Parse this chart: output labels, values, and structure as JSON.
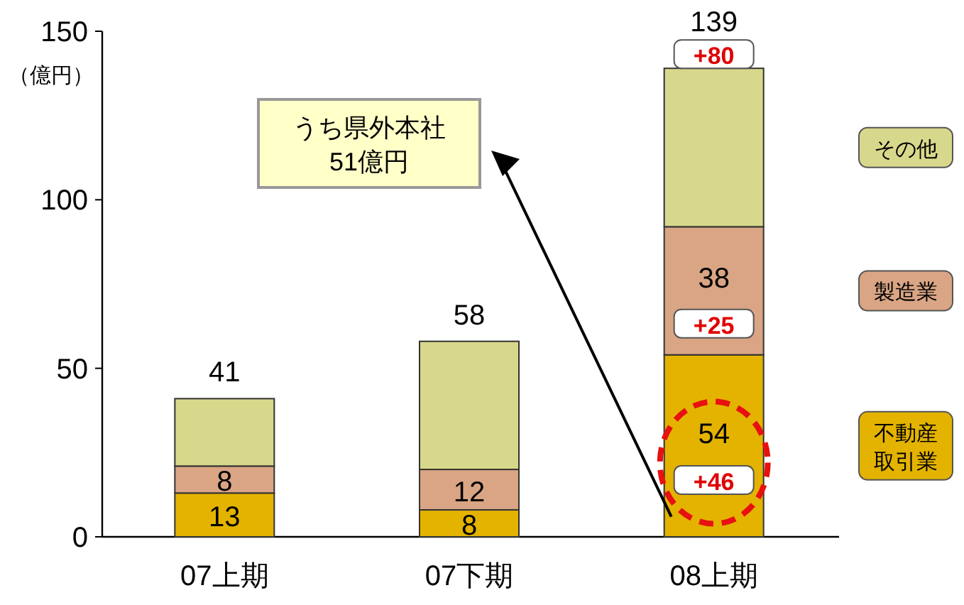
{
  "chart_data": {
    "type": "bar",
    "stacked": true,
    "ylabel": "（億円）",
    "categories": [
      "07上期",
      "07下期",
      "08上期"
    ],
    "series": [
      {
        "name": "不動産取引業",
        "color": "#e3b300",
        "values": [
          13,
          8,
          54
        ],
        "value_labels": [
          "13",
          "8",
          "54"
        ]
      },
      {
        "name": "製造業",
        "color": "#d9a584",
        "values": [
          8,
          12,
          38
        ],
        "value_labels": [
          "8",
          "12",
          "38"
        ]
      },
      {
        "name": "その他",
        "color": "#d8d88c",
        "values": [
          20,
          38,
          47
        ],
        "value_labels": [
          null,
          null,
          null
        ]
      }
    ],
    "totals": [
      "41",
      "58",
      "139"
    ],
    "ylim": [
      0,
      150
    ],
    "yticks": [
      0,
      50,
      100,
      150
    ],
    "legend": "right",
    "annotations": [
      "+80",
      "+25",
      "+46",
      "うち県外本社\n51億円"
    ]
  }
}
